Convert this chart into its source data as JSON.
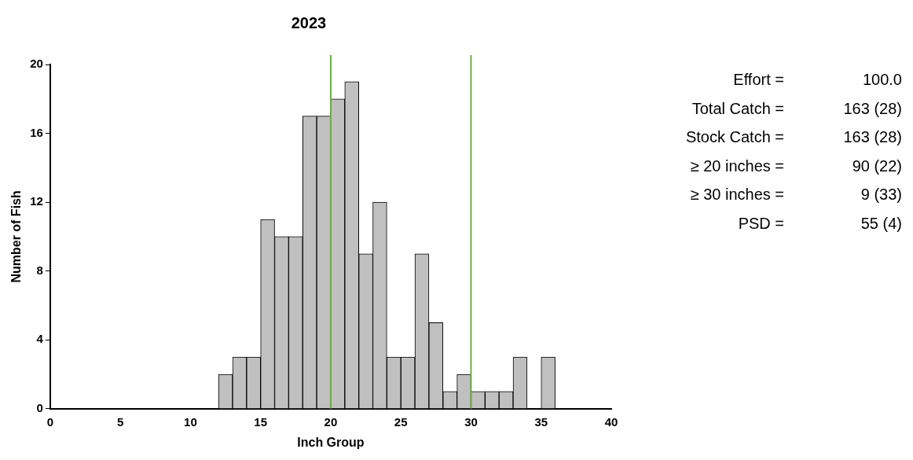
{
  "chart_data": {
    "type": "histogram",
    "title": "2023",
    "xlabel": "Inch Group",
    "ylabel": "Number of Fish",
    "bins": [
      12,
      13,
      14,
      15,
      16,
      17,
      18,
      19,
      20,
      21,
      22,
      23,
      24,
      25,
      26,
      27,
      28,
      29,
      30,
      31,
      32,
      33,
      34,
      35,
      36
    ],
    "values": [
      2,
      3,
      3,
      11,
      10,
      10,
      17,
      17,
      18,
      19,
      9,
      12,
      3,
      3,
      9,
      5,
      1,
      2,
      1,
      1,
      1,
      3,
      0,
      3
    ],
    "color": "#c0c0c0",
    "xlim": [
      0,
      40
    ],
    "xticks": [
      0,
      5,
      10,
      15,
      20,
      25,
      30,
      35,
      40
    ],
    "ylim": [
      0,
      20
    ],
    "yticks": [
      0,
      4,
      8,
      12,
      16,
      20
    ],
    "grid": false,
    "legend": false,
    "ref_lines": [
      {
        "axis": "x",
        "value": 20,
        "color": "#70ad47"
      },
      {
        "axis": "x",
        "value": 30,
        "color": "#70ad47"
      }
    ],
    "annotations": [
      "Effort =",
      "100.0",
      "Total Catch =",
      "163 (28)",
      "Stock Catch =",
      "163 (28)",
      "≥ 20 inches =",
      "90 (22)",
      "≥ 30 inches =",
      "9 (33)",
      "PSD =",
      "55 (4)"
    ]
  }
}
